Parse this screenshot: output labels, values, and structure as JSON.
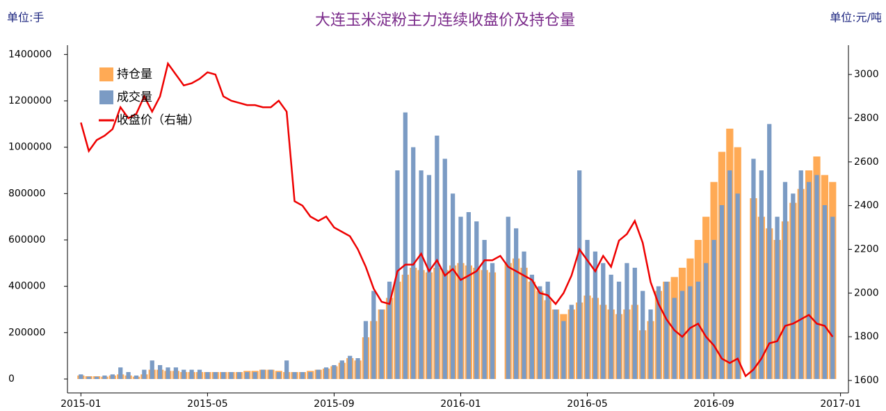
{
  "chart_data": {
    "type": "bar_line",
    "title": "大连玉米淀粉主力连续收盘价及持仓量",
    "y_unit": "单位:手",
    "y2_unit": "单位:元/吨",
    "categories": [
      null,
      null,
      null,
      null,
      null,
      null,
      null,
      null,
      null,
      null,
      null,
      null,
      null,
      null,
      null,
      null,
      null,
      null,
      null,
      null,
      null,
      null,
      null,
      null,
      null,
      null,
      null,
      null,
      null,
      null,
      null,
      null,
      null,
      null,
      null,
      null,
      null,
      null,
      null,
      null,
      null,
      null,
      null,
      null,
      null,
      null,
      null,
      null,
      null,
      null,
      null,
      null,
      null,
      null,
      null,
      null,
      null,
      null,
      null,
      null,
      null,
      null,
      null,
      null,
      null,
      null,
      null,
      null,
      null,
      null,
      null,
      null,
      null,
      null,
      null,
      null,
      null,
      null,
      null,
      null,
      null,
      null,
      null,
      null,
      null,
      null,
      null,
      null,
      null,
      null,
      null,
      null,
      null,
      null,
      null,
      null
    ],
    "xlim": [
      -1.7,
      97
    ],
    "xticks": [
      {
        "value": 0,
        "label": "2015-01"
      },
      {
        "value": 16,
        "label": "2015-05"
      },
      {
        "value": 32,
        "label": "2015-09"
      },
      {
        "value": 48,
        "label": "2016-01"
      },
      {
        "value": 64,
        "label": "2016-05"
      },
      {
        "value": 80,
        "label": "2016-09"
      },
      {
        "value": 96,
        "label": "2017-01"
      }
    ],
    "ylim": [
      -60000,
      1440000
    ],
    "yticks": [
      0,
      200000,
      400000,
      600000,
      800000,
      1000000,
      1200000,
      1400000
    ],
    "y2lim": [
      1543,
      3134
    ],
    "y2ticks": [
      1600,
      1800,
      2000,
      2200,
      2400,
      2600,
      2800,
      3000
    ],
    "legend": "upper left",
    "series": [
      {
        "name": "持仓量",
        "color": "#ffaa55",
        "values": [
          15000,
          12000,
          12000,
          10000,
          15000,
          20000,
          15000,
          10000,
          20000,
          40000,
          40000,
          35000,
          35000,
          30000,
          30000,
          30000,
          30000,
          30000,
          30000,
          30000,
          30000,
          35000,
          35000,
          40000,
          40000,
          35000,
          30000,
          30000,
          30000,
          35000,
          40000,
          45000,
          55000,
          70000,
          90000,
          80000,
          180000,
          250000,
          300000,
          350000,
          420000,
          450000,
          480000,
          470000,
          460000,
          480000,
          470000,
          490000,
          500000,
          490000,
          480000,
          470000,
          460000,
          null,
          500000,
          520000,
          480000,
          420000,
          380000,
          340000,
          300000,
          280000,
          300000,
          330000,
          360000,
          350000,
          320000,
          300000,
          280000,
          300000,
          320000,
          210000,
          250000,
          380000,
          420000,
          440000,
          480000,
          520000,
          600000,
          700000,
          850000,
          980000,
          1080000,
          1000000,
          null,
          780000,
          700000,
          650000,
          600000,
          680000,
          760000,
          820000,
          900000,
          960000,
          880000,
          850000
        ]
      },
      {
        "name": "成交量",
        "color": "#7b9bc4",
        "values": [
          20000,
          10000,
          10000,
          15000,
          20000,
          50000,
          30000,
          15000,
          40000,
          80000,
          60000,
          50000,
          50000,
          40000,
          40000,
          40000,
          30000,
          30000,
          30000,
          30000,
          30000,
          30000,
          30000,
          40000,
          40000,
          30000,
          80000,
          30000,
          30000,
          30000,
          40000,
          50000,
          60000,
          80000,
          100000,
          90000,
          250000,
          380000,
          300000,
          420000,
          900000,
          1150000,
          1000000,
          900000,
          880000,
          1050000,
          950000,
          800000,
          700000,
          720000,
          680000,
          600000,
          500000,
          null,
          700000,
          650000,
          550000,
          450000,
          400000,
          420000,
          300000,
          250000,
          320000,
          900000,
          600000,
          550000,
          500000,
          450000,
          420000,
          500000,
          480000,
          380000,
          300000,
          400000,
          420000,
          350000,
          380000,
          400000,
          420000,
          500000,
          600000,
          750000,
          900000,
          800000,
          null,
          950000,
          900000,
          1100000,
          700000,
          850000,
          800000,
          900000,
          850000,
          880000,
          750000,
          700000
        ]
      },
      {
        "name": "收盘价（右轴）",
        "color": "#ee0000",
        "axis": "y2",
        "values": [
          2780,
          2650,
          2700,
          2720,
          2750,
          2850,
          2800,
          2820,
          2900,
          2830,
          2900,
          3050,
          3000,
          2950,
          2960,
          2980,
          3010,
          3000,
          2900,
          2880,
          2870,
          2860,
          2860,
          2850,
          2850,
          2880,
          2830,
          2420,
          2400,
          2350,
          2330,
          2350,
          2300,
          2280,
          2260,
          2200,
          2120,
          2020,
          1960,
          1950,
          2100,
          2130,
          2130,
          2180,
          2100,
          2150,
          2080,
          2110,
          2060,
          2080,
          2100,
          2150,
          2150,
          2170,
          2120,
          2100,
          2080,
          2060,
          2000,
          1990,
          1950,
          2000,
          2080,
          2200,
          2150,
          2100,
          2170,
          2120,
          2240,
          2270,
          2330,
          2230,
          2050,
          1950,
          1880,
          1830,
          1800,
          1840,
          1860,
          1800,
          1760,
          1700,
          1680,
          1700,
          1620,
          1650,
          1700,
          1770,
          1780,
          1850,
          1860,
          1880,
          1900,
          1860,
          1850,
          1800
        ]
      }
    ]
  }
}
